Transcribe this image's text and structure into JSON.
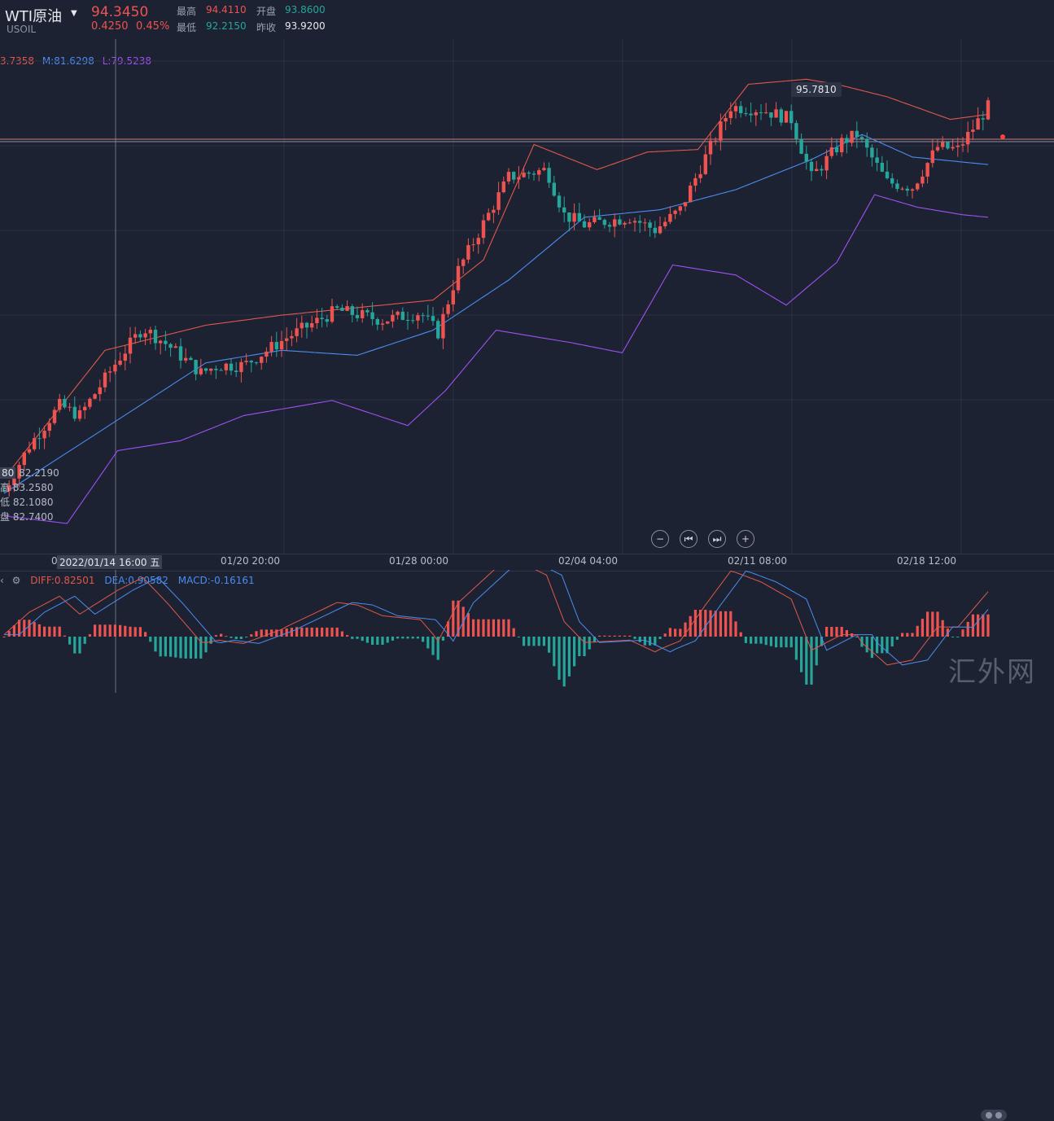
{
  "header": {
    "title": "WTI原油",
    "symbol": "USOIL",
    "last": "94.3450",
    "change": "0.4250",
    "change_pct": "0.45%",
    "high_label": "最高",
    "high": "94.4110",
    "low_label": "最低",
    "low": "92.2150",
    "open_label": "开盘",
    "open": "93.8600",
    "prev_label": "昨收",
    "prev": "93.9200"
  },
  "boll": {
    "upper": "3.7358",
    "mid": "M:81.6298",
    "lower": "L:79.5238"
  },
  "tooltip": {
    "badge": "80",
    "close": "82.2190",
    "high_label": "高",
    "high": "83.2580",
    "low_label": "低",
    "low": "82.1080",
    "open_label": "盘",
    "open": "82.7400",
    "first_label": "0"
  },
  "price_tag": "95.7810",
  "xaxis": {
    "crosshair": "2022/01/14 16:00 五",
    "labels": [
      "01/20 20:00",
      "01/28 00:00",
      "02/04 04:00",
      "02/11 08:00",
      "02/18 12:00"
    ]
  },
  "zoom": {
    "minus": "−",
    "prev": "⏮",
    "next": "⏭",
    "plus": "+"
  },
  "macd": {
    "diff": "DIFF:0.82501",
    "dea": "DEA:0.90582",
    "macd": "MACD:-0.16161"
  },
  "watermark": "汇外网",
  "colors": {
    "up": "#ef5350",
    "down": "#26a69a",
    "mid": "#4a8df0",
    "upper": "#e0584a",
    "lower": "#a050f0",
    "diff": "#e0584a",
    "dea": "#4a8df0"
  },
  "icons": {
    "caret": "caret-down-icon",
    "gear": "gear-icon",
    "collapse": "chevron-left-icon"
  },
  "chart_data": {
    "type": "candlestick",
    "price_range": [
      76.5,
      97.0
    ],
    "anchors": [
      [
        0,
        79.0
      ],
      [
        10,
        80.8
      ],
      [
        22,
        82.4
      ],
      [
        30,
        82.0
      ],
      [
        45,
        84.2
      ],
      [
        55,
        85.5
      ],
      [
        65,
        84.8
      ],
      [
        78,
        83.7
      ],
      [
        85,
        84.0
      ],
      [
        95,
        84.0
      ],
      [
        112,
        85.1
      ],
      [
        132,
        86.2
      ],
      [
        150,
        85.8
      ],
      [
        165,
        86.1
      ],
      [
        172,
        85.3
      ],
      [
        180,
        87.8
      ],
      [
        200,
        91.5
      ],
      [
        215,
        91.8
      ],
      [
        222,
        90.0
      ],
      [
        230,
        89.6
      ],
      [
        248,
        89.9
      ],
      [
        258,
        89.4
      ],
      [
        268,
        90.2
      ],
      [
        278,
        92.3
      ],
      [
        288,
        94.3
      ],
      [
        300,
        94.2
      ],
      [
        312,
        93.8
      ],
      [
        320,
        91.5
      ],
      [
        332,
        92.9
      ],
      [
        338,
        93.2
      ],
      [
        350,
        91.3
      ],
      [
        360,
        91.1
      ],
      [
        370,
        92.7
      ],
      [
        378,
        92.6
      ],
      [
        390,
        94.3
      ]
    ],
    "upper_band": [
      [
        0,
        79.5
      ],
      [
        40,
        84.6
      ],
      [
        80,
        85.6
      ],
      [
        110,
        86.0
      ],
      [
        140,
        86.3
      ],
      [
        170,
        86.6
      ],
      [
        190,
        88.2
      ],
      [
        210,
        92.8
      ],
      [
        235,
        91.8
      ],
      [
        255,
        92.5
      ],
      [
        275,
        92.6
      ],
      [
        295,
        95.2
      ],
      [
        318,
        95.4
      ],
      [
        330,
        95.2
      ],
      [
        350,
        94.7
      ],
      [
        375,
        93.8
      ],
      [
        390,
        94.0
      ]
    ],
    "lower_band": [
      [
        0,
        78.0
      ],
      [
        25,
        77.7
      ],
      [
        45,
        80.6
      ],
      [
        70,
        81.0
      ],
      [
        95,
        82.0
      ],
      [
        130,
        82.6
      ],
      [
        160,
        81.6
      ],
      [
        175,
        83.0
      ],
      [
        195,
        85.4
      ],
      [
        225,
        84.9
      ],
      [
        245,
        84.5
      ],
      [
        265,
        88.0
      ],
      [
        290,
        87.6
      ],
      [
        310,
        86.4
      ],
      [
        330,
        88.1
      ],
      [
        345,
        90.8
      ],
      [
        362,
        90.3
      ],
      [
        380,
        90.0
      ],
      [
        390,
        89.9
      ]
    ],
    "mid_band": [
      [
        0,
        78.9
      ],
      [
        40,
        81.5
      ],
      [
        80,
        84.1
      ],
      [
        110,
        84.6
      ],
      [
        140,
        84.4
      ],
      [
        170,
        85.4
      ],
      [
        200,
        87.4
      ],
      [
        230,
        89.9
      ],
      [
        260,
        90.2
      ],
      [
        290,
        91.0
      ],
      [
        320,
        92.2
      ],
      [
        340,
        93.2
      ],
      [
        360,
        92.3
      ],
      [
        390,
        92.0
      ]
    ]
  }
}
